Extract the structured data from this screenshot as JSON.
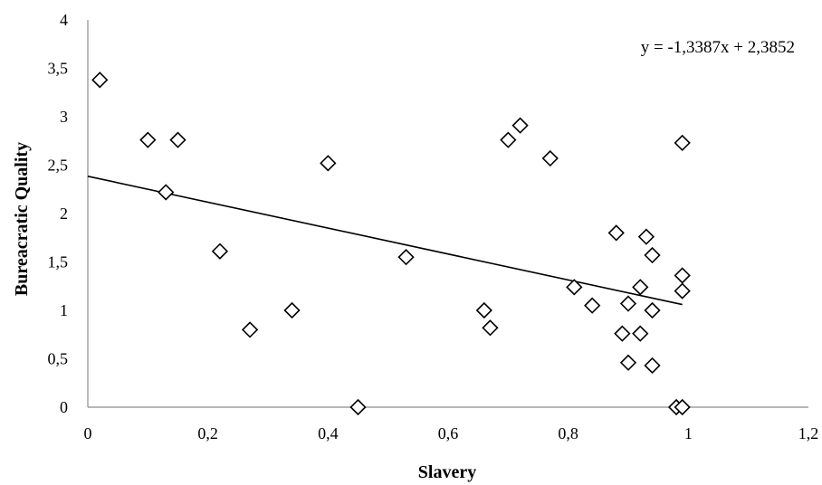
{
  "chart_data": {
    "type": "scatter",
    "xlabel": "Slavery",
    "ylabel": "Bureacratic Quality",
    "xlim": [
      0,
      1.2
    ],
    "ylim": [
      0,
      4
    ],
    "x_ticks": [
      "0",
      "0,2",
      "0,4",
      "0,6",
      "0,8",
      "1",
      "1,2"
    ],
    "y_ticks": [
      "0",
      "0,5",
      "1",
      "1,5",
      "2",
      "2,5",
      "3",
      "3,5",
      "4"
    ],
    "x_tick_values": [
      0,
      0.2,
      0.4,
      0.6,
      0.8,
      1.0,
      1.2
    ],
    "y_tick_values": [
      0,
      0.5,
      1,
      1.5,
      2,
      2.5,
      3,
      3.5,
      4
    ],
    "grid": false,
    "marker": "diamond",
    "trendline": {
      "label": "y = -1,3387x + 2,3852",
      "slope": -1.3387,
      "intercept": 2.3852,
      "x_range": [
        0,
        0.99
      ]
    },
    "points": [
      {
        "x": 0.02,
        "y": 3.38
      },
      {
        "x": 0.1,
        "y": 2.76
      },
      {
        "x": 0.15,
        "y": 2.76
      },
      {
        "x": 0.13,
        "y": 2.22
      },
      {
        "x": 0.22,
        "y": 1.61
      },
      {
        "x": 0.27,
        "y": 0.8
      },
      {
        "x": 0.34,
        "y": 1.0
      },
      {
        "x": 0.4,
        "y": 2.52
      },
      {
        "x": 0.45,
        "y": 0.0
      },
      {
        "x": 0.53,
        "y": 1.55
      },
      {
        "x": 0.66,
        "y": 1.0
      },
      {
        "x": 0.67,
        "y": 0.82
      },
      {
        "x": 0.7,
        "y": 2.76
      },
      {
        "x": 0.72,
        "y": 2.91
      },
      {
        "x": 0.77,
        "y": 2.57
      },
      {
        "x": 0.81,
        "y": 1.24
      },
      {
        "x": 0.84,
        "y": 1.05
      },
      {
        "x": 0.88,
        "y": 1.8
      },
      {
        "x": 0.89,
        "y": 0.76
      },
      {
        "x": 0.9,
        "y": 1.07
      },
      {
        "x": 0.9,
        "y": 0.46
      },
      {
        "x": 0.92,
        "y": 1.24
      },
      {
        "x": 0.92,
        "y": 0.76
      },
      {
        "x": 0.93,
        "y": 1.76
      },
      {
        "x": 0.94,
        "y": 1.57
      },
      {
        "x": 0.94,
        "y": 1.0
      },
      {
        "x": 0.94,
        "y": 0.43
      },
      {
        "x": 0.98,
        "y": 0.0
      },
      {
        "x": 0.99,
        "y": 0.0
      },
      {
        "x": 0.99,
        "y": 2.73
      },
      {
        "x": 0.99,
        "y": 1.36
      },
      {
        "x": 0.99,
        "y": 1.2
      }
    ]
  }
}
